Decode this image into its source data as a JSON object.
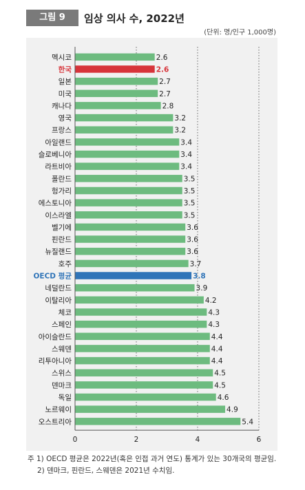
{
  "header": {
    "figure_label": "그림 9",
    "title": "임상 의사 수, 2022년",
    "unit": "(단위: 명/인구 1,000명)"
  },
  "colors": {
    "default": "#6dbb7f",
    "korea": "#d7343a",
    "oecd": "#2f74b8",
    "panel": "#f1f1f1"
  },
  "chart_data": {
    "type": "bar",
    "orientation": "horizontal",
    "categories": [
      "멕시코",
      "한국",
      "일본",
      "미국",
      "캐나다",
      "영국",
      "프랑스",
      "아일랜드",
      "슬로베니아",
      "라트비아",
      "폴란드",
      "헝가리",
      "에스토니아",
      "이스라엘",
      "벨기에",
      "핀란드",
      "뉴질랜드",
      "호주",
      "OECD 평균",
      "네덜란드",
      "이탈리아",
      "체코",
      "스페인",
      "아이슬란드",
      "스웨덴",
      "리투아니아",
      "스위스",
      "덴마크",
      "독일",
      "노르웨이",
      "오스트리아"
    ],
    "values": [
      2.6,
      2.6,
      2.7,
      2.7,
      2.8,
      3.2,
      3.2,
      3.4,
      3.4,
      3.4,
      3.5,
      3.5,
      3.5,
      3.5,
      3.6,
      3.6,
      3.6,
      3.7,
      3.8,
      3.9,
      4.2,
      4.3,
      4.3,
      4.4,
      4.4,
      4.4,
      4.5,
      4.5,
      4.6,
      4.9,
      5.4
    ],
    "value_labels": [
      "2.6",
      "2.6",
      "2.7",
      "2.7",
      "2.8",
      "3.2",
      "3.2",
      "3.4",
      "3.4",
      "3.4",
      "3.5",
      "3.5",
      "3.5",
      "3.5",
      "3.6",
      "3.6",
      "3.6",
      "3.7",
      "3.8",
      "3.9",
      "4.2",
      "4.3",
      "4.3",
      "4.4",
      "4.4",
      "4.4",
      "4.5",
      "4.5",
      "4.6",
      "4.9",
      "5.4"
    ],
    "highlight": {
      "한국": "korea",
      "OECD 평균": "oecd"
    },
    "xlim": [
      0,
      6
    ],
    "xticks": [
      0,
      2,
      4,
      6
    ],
    "xtick_labels": [
      "0",
      "2",
      "4",
      "6"
    ],
    "grid": "vertical-dotted"
  },
  "notes": [
    "주 1) OECD 평균은 2022년(혹은 인접 과거 연도) 통계가 있는 30개국의 평균임.",
    "2) 덴마크, 핀란드, 스웨덴은 2021년 수치임."
  ]
}
